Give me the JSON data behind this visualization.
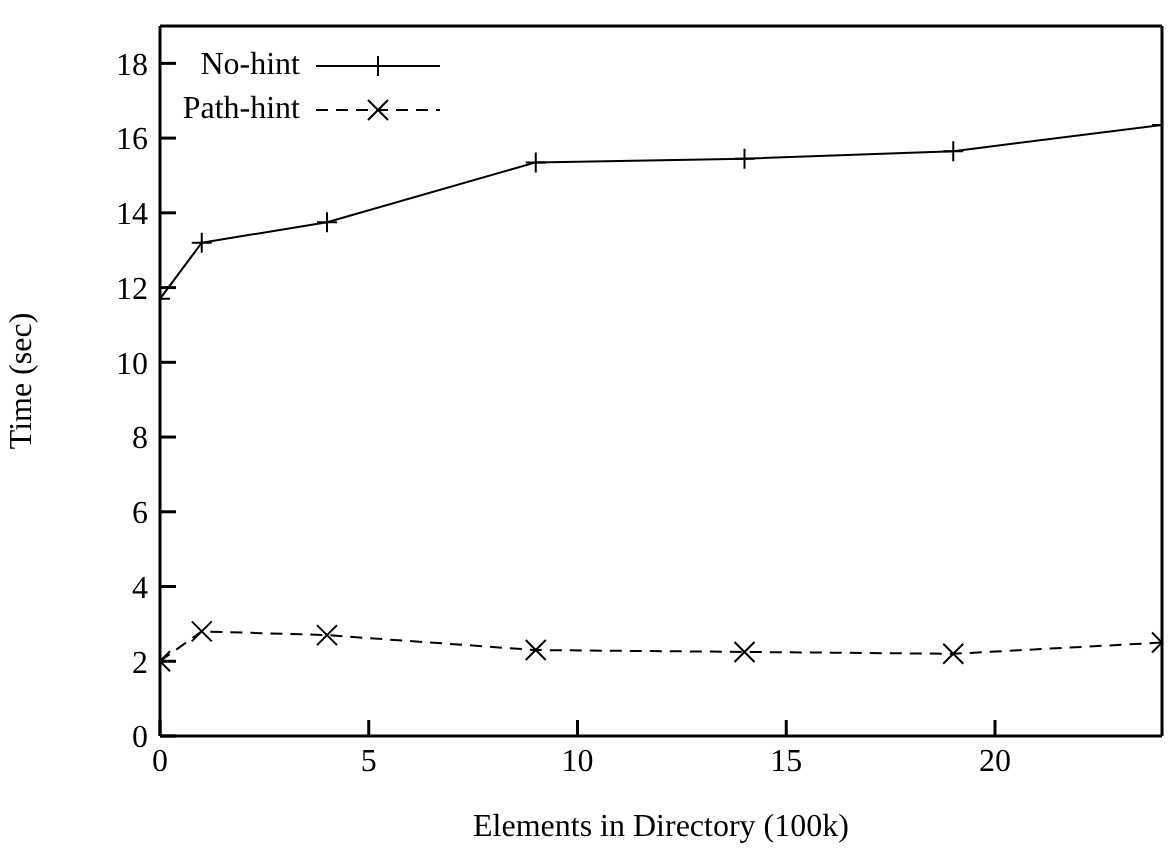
{
  "chart_data": {
    "type": "line",
    "xlabel": "Elements in Directory (100k)",
    "ylabel": "Time (sec)",
    "x": [
      0,
      1,
      4,
      9,
      14,
      19,
      24
    ],
    "series": [
      {
        "name": "No-hint",
        "color": "#000000",
        "values": [
          11.7,
          13.2,
          13.75,
          15.35,
          15.45,
          15.65,
          16.35
        ],
        "marker": "plus",
        "line_style": "solid"
      },
      {
        "name": "Path-hint",
        "color": "#000000",
        "values": [
          2.0,
          2.8,
          2.7,
          2.3,
          2.25,
          2.2,
          2.5
        ],
        "marker": "cross",
        "line_style": "dashed"
      }
    ],
    "xlim": [
      0,
      24
    ],
    "xticks": [
      0,
      5,
      10,
      15,
      20
    ],
    "ylim": [
      0,
      19
    ],
    "yticks": [
      0,
      2,
      4,
      6,
      8,
      10,
      12,
      14,
      16,
      18
    ],
    "grid": false,
    "legend": "top left"
  }
}
